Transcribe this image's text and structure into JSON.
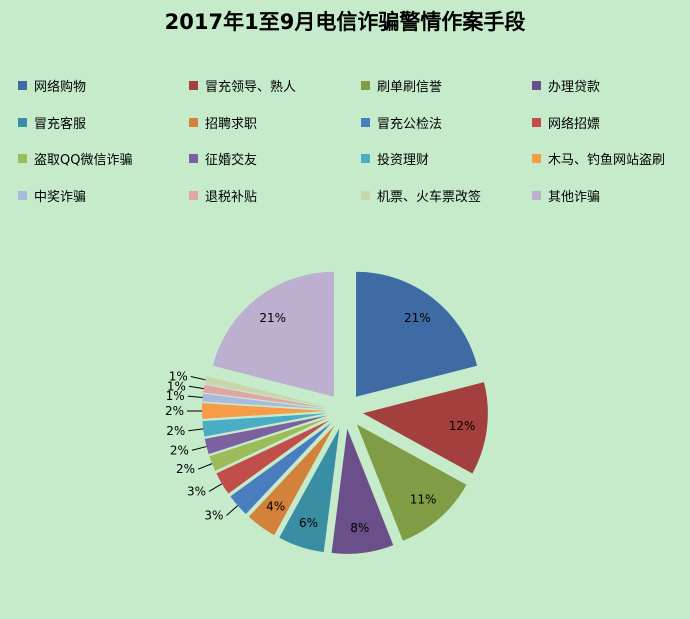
{
  "chart_data": {
    "type": "pie",
    "title": "2017年1至9月电信诈骗警情作案手段",
    "legend_position": "top",
    "categories": [
      "网络购物",
      "冒充领导、熟人",
      "刷单刷信誉",
      "办理贷款",
      "冒充客服",
      "招聘求职",
      "冒充公检法",
      "网络招嫖",
      "盗取QQ微信诈骗",
      "征婚交友",
      "投资理财",
      "木马、钓鱼网站盗刷",
      "中奖诈骗",
      "退税补贴",
      "机票、火车票改签",
      "其他诈骗"
    ],
    "values": [
      21,
      12,
      11,
      8,
      6,
      4,
      3,
      3,
      2,
      2,
      2,
      2,
      1,
      1,
      1,
      21
    ],
    "labels": [
      "21%",
      "12%",
      "11%",
      "8%",
      "6%",
      "4%",
      "3%",
      "3%",
      "2%",
      "2%",
      "2%",
      "2%",
      "1%",
      "1%",
      "1%",
      "21%"
    ],
    "colors": [
      "#3e6ba3",
      "#a3403d",
      "#809c45",
      "#6a4f8a",
      "#3a8ea3",
      "#d3823b",
      "#4a7dbf",
      "#c24e4b",
      "#9bbc59",
      "#7b61a0",
      "#4aacc5",
      "#f69b48",
      "#a9bade",
      "#e0a5a4",
      "#c8d5ad",
      "#bcafcf"
    ]
  }
}
